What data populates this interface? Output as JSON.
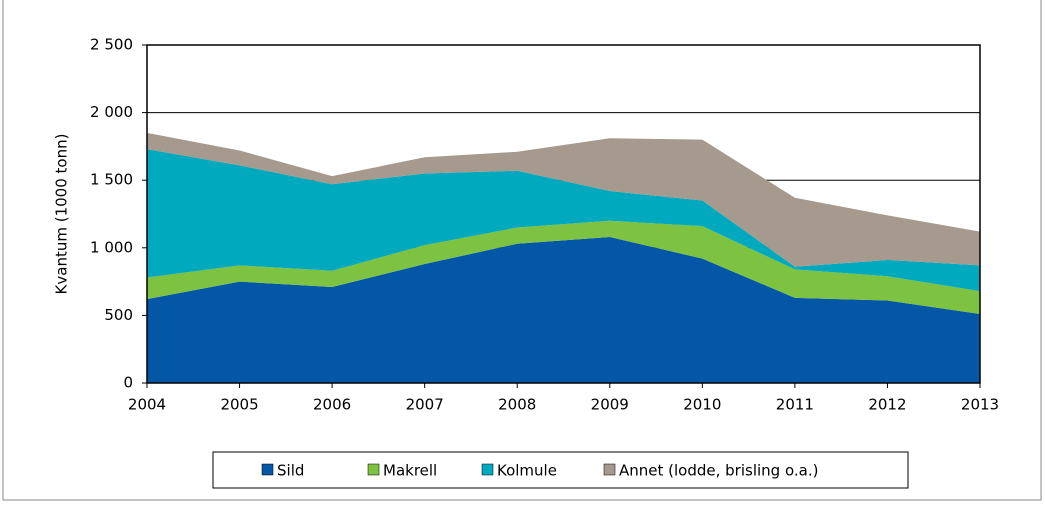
{
  "chart_data": {
    "type": "stacked_area",
    "y_label": "Kvantum (1000 tonn)",
    "x": [
      2004,
      2005,
      2006,
      2007,
      2008,
      2009,
      2010,
      2011,
      2012,
      2013
    ],
    "xlim": [
      2004,
      2013
    ],
    "xticks": [
      2004,
      2005,
      2006,
      2007,
      2008,
      2009,
      2010,
      2011,
      2012,
      2013
    ],
    "ylim": [
      0,
      2500
    ],
    "yticks": [
      0,
      500,
      {
        "value": 1000,
        "label": "1 000"
      },
      {
        "value": 1500,
        "label": "1 500"
      },
      {
        "value": 2000,
        "label": "2 000"
      },
      {
        "value": 2500,
        "label": "2 500"
      }
    ],
    "grid": true,
    "legend": "bottom",
    "series": [
      {
        "name": "Sild",
        "color": "#0457a6",
        "values": [
          620,
          750,
          710,
          880,
          1030,
          1080,
          920,
          630,
          610,
          510
        ]
      },
      {
        "name": "Makrell",
        "color": "#7dc241",
        "values": [
          160,
          120,
          120,
          140,
          120,
          120,
          240,
          210,
          180,
          170
        ]
      },
      {
        "name": "Kolmule",
        "color": "#00a9bd",
        "values": [
          950,
          740,
          640,
          530,
          420,
          220,
          190,
          20,
          120,
          190
        ]
      },
      {
        "name": "Annet (lodde, brisling o.a.)",
        "color": "#a59a8d",
        "values": [
          120,
          110,
          60,
          120,
          140,
          390,
          450,
          510,
          330,
          250
        ]
      }
    ]
  }
}
